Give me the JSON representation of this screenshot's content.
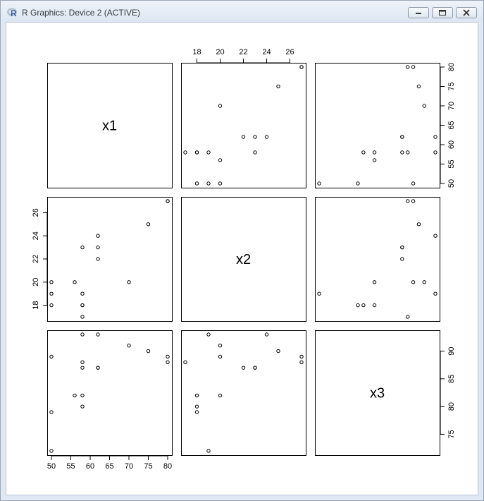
{
  "window": {
    "title": "R Graphics: Device 2 (ACTIVE)",
    "icon": "r-logo-icon",
    "buttons": [
      "minimize-icon",
      "maximize-icon",
      "close-icon"
    ]
  },
  "chart_data": {
    "type": "scatter",
    "layout": "pairs",
    "variables": [
      "x1",
      "x2",
      "x3"
    ],
    "axis_ticks": {
      "x1": [
        50,
        55,
        60,
        65,
        70,
        75,
        80
      ],
      "x2": [
        18,
        20,
        22,
        24,
        26
      ],
      "x3": [
        75,
        80,
        85,
        90
      ]
    },
    "ranges": {
      "x1": [
        50,
        80
      ],
      "x2": [
        17,
        27
      ],
      "x3": [
        72,
        93
      ]
    },
    "observations": [
      {
        "x1": 50,
        "x2": 18,
        "x3": 79
      },
      {
        "x1": 50,
        "x2": 19,
        "x3": 72
      },
      {
        "x1": 50,
        "x2": 20,
        "x3": 89
      },
      {
        "x1": 56,
        "x2": 20,
        "x3": 82
      },
      {
        "x1": 58,
        "x2": 17,
        "x3": 88
      },
      {
        "x1": 58,
        "x2": 18,
        "x3": 80
      },
      {
        "x1": 58,
        "x2": 18,
        "x3": 82
      },
      {
        "x1": 58,
        "x2": 19,
        "x3": 93
      },
      {
        "x1": 58,
        "x2": 23,
        "x3": 87
      },
      {
        "x1": 62,
        "x2": 22,
        "x3": 87
      },
      {
        "x1": 62,
        "x2": 23,
        "x3": 87
      },
      {
        "x1": 62,
        "x2": 24,
        "x3": 93
      },
      {
        "x1": 70,
        "x2": 20,
        "x3": 91
      },
      {
        "x1": 75,
        "x2": 25,
        "x3": 90
      },
      {
        "x1": 80,
        "x2": 27,
        "x3": 89
      },
      {
        "x1": 80,
        "x2": 27,
        "x3": 88
      }
    ],
    "axis_placement": {
      "top": [
        "none",
        "x2",
        "none"
      ],
      "bottom": [
        "x1",
        "none",
        "none"
      ],
      "left": [
        "none",
        "x2",
        "none"
      ],
      "right": [
        "x1",
        "none",
        "x3"
      ]
    },
    "point_marker": "open-circle",
    "colors": {
      "points": "#000000",
      "frame": "#000000"
    }
  }
}
